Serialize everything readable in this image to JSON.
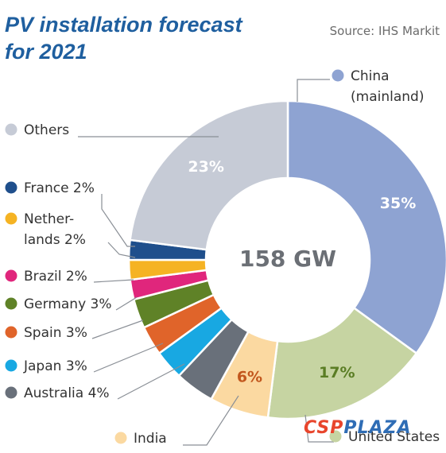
{
  "header": {
    "title_line1": "PV installation forecast",
    "title_line2": "for 2021",
    "source": "Source: IHS Markit"
  },
  "center_label": "158 GW",
  "watermark": {
    "part1": "CSP",
    "part2": "PLAZA"
  },
  "colors": {
    "china": "#8ea3d2",
    "us": "#c6d4a2",
    "india": "#fbd9a1",
    "australia": "#69707a",
    "japan": "#18a8e2",
    "spain": "#e0642a",
    "germany": "#5f8227",
    "brazil": "#e0267c",
    "netherlands": "#f5b323",
    "france": "#1f4f8c",
    "others": "#c6cbd6"
  },
  "chart_data": {
    "type": "pie",
    "title": "PV installation forecast for 2021",
    "total_label": "158 GW",
    "slices": [
      {
        "key": "china",
        "label_lines": [
          "China",
          "(mainland)"
        ],
        "value": 35,
        "data_label": "35%",
        "color": "#8ea3d2"
      },
      {
        "key": "us",
        "label_lines": [
          "United States"
        ],
        "value": 17,
        "data_label": "17%",
        "color": "#c6d4a2"
      },
      {
        "key": "india",
        "label_lines": [
          "India"
        ],
        "value": 6,
        "data_label": "6%",
        "color": "#fbd9a1"
      },
      {
        "key": "australia",
        "label_lines": [
          "Australia 4%"
        ],
        "value": 4,
        "data_label": "",
        "color": "#69707a"
      },
      {
        "key": "japan",
        "label_lines": [
          "Japan 3%"
        ],
        "value": 3,
        "data_label": "",
        "color": "#18a8e2"
      },
      {
        "key": "spain",
        "label_lines": [
          "Spain 3%"
        ],
        "value": 3,
        "data_label": "",
        "color": "#e0642a"
      },
      {
        "key": "germany",
        "label_lines": [
          "Germany 3%"
        ],
        "value": 3,
        "data_label": "",
        "color": "#5f8227"
      },
      {
        "key": "brazil",
        "label_lines": [
          "Brazil 2%"
        ],
        "value": 2,
        "data_label": "",
        "color": "#e0267c"
      },
      {
        "key": "netherlands",
        "label_lines": [
          "Nether-",
          "lands 2%"
        ],
        "value": 2,
        "data_label": "",
        "color": "#f5b323"
      },
      {
        "key": "france",
        "label_lines": [
          "France 2%"
        ],
        "value": 2,
        "data_label": "",
        "color": "#1f4f8c"
      },
      {
        "key": "others",
        "label_lines": [
          "Others"
        ],
        "value": 23,
        "data_label": "23%",
        "color": "#c6cbd6"
      }
    ]
  }
}
